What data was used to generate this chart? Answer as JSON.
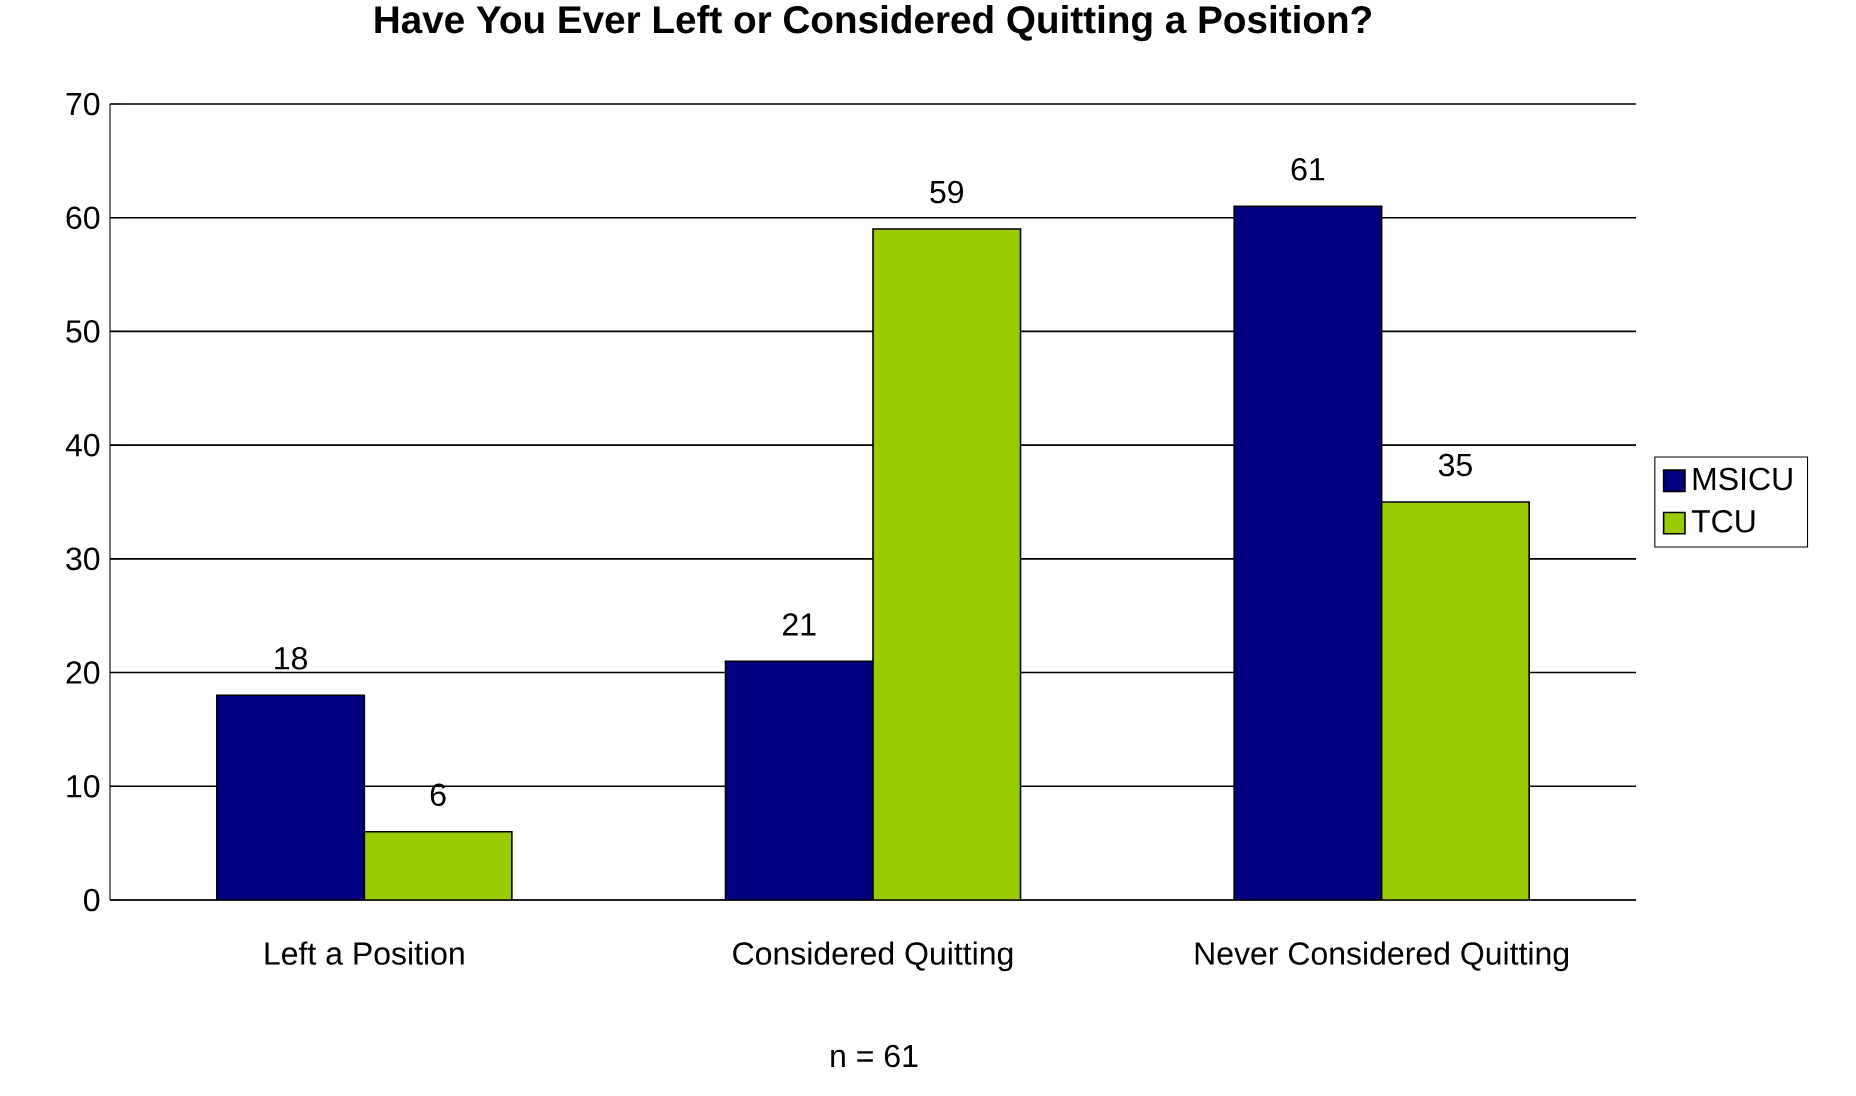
{
  "chart_data": {
    "type": "bar",
    "title": "Have You Ever Left or Considered Quitting a Position?",
    "categories": [
      "Left a Position",
      "Considered Quitting",
      "Never Considered Quitting"
    ],
    "series": [
      {
        "name": "MSICU",
        "color": "#000080",
        "values": [
          18,
          21,
          61
        ]
      },
      {
        "name": "TCU",
        "color": "#99cc00",
        "values": [
          6,
          59,
          35
        ]
      }
    ],
    "ylim": [
      0,
      70
    ],
    "yticks": [
      0,
      10,
      20,
      30,
      40,
      50,
      60,
      70
    ],
    "grid": "y",
    "legend": "right",
    "data_labels": true,
    "annotations": [
      "n = 61"
    ]
  }
}
